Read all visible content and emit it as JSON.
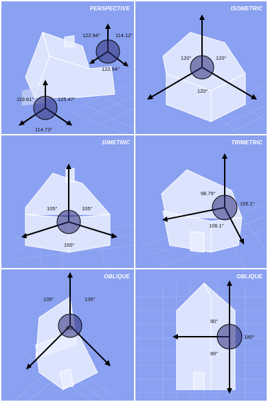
{
  "panels": [
    {
      "title": "PERSPECTIVE",
      "angles": [
        "122.94°",
        "114.12°",
        "122.94°",
        "119.81°",
        "125.47°",
        "114.73°"
      ]
    },
    {
      "title": "ISOMETRIC",
      "angles": [
        "120°",
        "120°",
        "120°"
      ]
    },
    {
      "title": "DIMETRIC",
      "angles": [
        "105°",
        "105°",
        "150°"
      ]
    },
    {
      "title": "TRIMETRIC",
      "angles": [
        "98.79°",
        "155.1°",
        "106.1°"
      ]
    },
    {
      "title": "OBLIQUE",
      "angles": [
        "135°",
        "135°",
        "90°"
      ]
    },
    {
      "title": "OBLIQUE",
      "angles": [
        "90°",
        "180°",
        "90°"
      ]
    }
  ]
}
